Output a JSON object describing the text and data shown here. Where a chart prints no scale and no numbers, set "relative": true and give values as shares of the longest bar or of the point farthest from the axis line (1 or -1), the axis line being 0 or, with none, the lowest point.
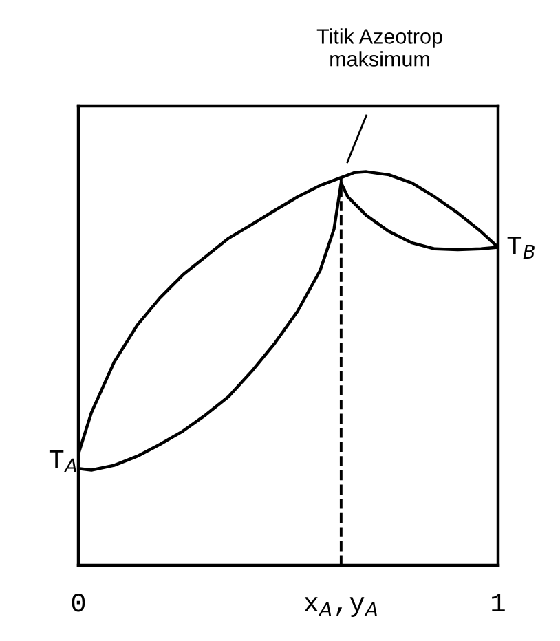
{
  "chart_data": {
    "type": "line",
    "relative": true,
    "xlim": [
      0,
      1
    ],
    "xticks": [
      0,
      {
        "value": 0.626,
        "label": "x$_{A}$,y$_{A}$"
      },
      1
    ],
    "tick_labels": "x",
    "marker": "none",
    "line_style": "solid",
    "grid": false,
    "legend": false,
    "series": [
      {
        "color": "#000000",
        "x": [
          0,
          0.031,
          0.085,
          0.14,
          0.194,
          0.249,
          0.303,
          0.358,
          0.413,
          0.467,
          0.522,
          0.576,
          0.626,
          0.658,
          0.686,
          0.74,
          0.795,
          0.849,
          0.904,
          0.959,
          1
        ],
        "values": [
          0.283,
          0.388,
          0.516,
          0.61,
          0.679,
          0.738,
          0.784,
          0.831,
          0.866,
          0.901,
          0.936,
          0.965,
          0.985,
          0.998,
          1,
          0.992,
          0.971,
          0.936,
          0.895,
          0.848,
          0.808
        ]
      },
      {
        "color": "#000000",
        "x": [
          0,
          0.031,
          0.085,
          0.14,
          0.194,
          0.249,
          0.303,
          0.358,
          0.413,
          0.467,
          0.522,
          0.576,
          0.609,
          0.626,
          0.642,
          0.686,
          0.74,
          0.795,
          0.849,
          0.904,
          0.959,
          1
        ],
        "values": [
          0.246,
          0.242,
          0.254,
          0.277,
          0.307,
          0.341,
          0.382,
          0.429,
          0.493,
          0.563,
          0.645,
          0.749,
          0.854,
          0.971,
          0.936,
          0.889,
          0.848,
          0.819,
          0.804,
          0.802,
          0.804,
          0.808
        ]
      }
    ],
    "ref_lines": [
      {
        "axis": "x",
        "value": 0.626,
        "color": "#000000",
        "line_style": "dashed"
      }
    ],
    "annotations": [
      "Titik Azeotrop\nmaksimum",
      {
        "text": "T$_{A}$",
        "x": 0,
        "y": 0.265
      },
      {
        "text": "T$_{B}$",
        "x": 1,
        "y": 0.808
      }
    ]
  }
}
